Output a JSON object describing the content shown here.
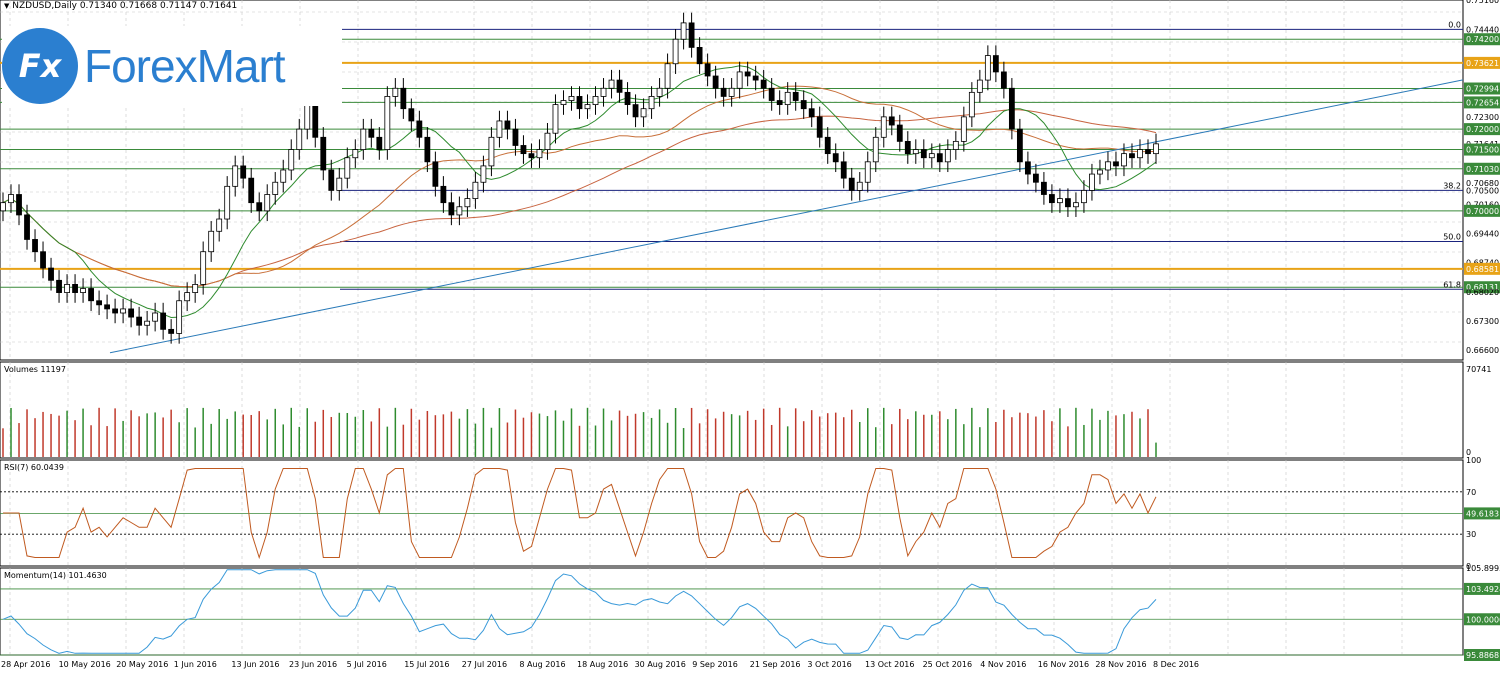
{
  "header": {
    "symbol_info": "NZDUSD,Daily  0.71340 0.71668 0.71147 0.71641"
  },
  "logo": {
    "text": "ForexMart",
    "badge": "Fx"
  },
  "colors": {
    "up": "#ffffff",
    "down": "#000000",
    "grid": "#c8c8c8",
    "level": "#3a8a3a",
    "gold": "#e8a317",
    "trend": "#2a7ab8",
    "ma_fast": "#2e8b2e",
    "ma_mid": "#c8703a",
    "ma_slow": "#c86440",
    "rsi": "#c05a20",
    "momentum": "#3a9ad9",
    "fib": "#1a237e",
    "vol_up": "#2e8b2e",
    "vol_down": "#c0392b"
  },
  "chart_data": [
    {
      "type": "candlestick",
      "title": "NZDUSD,Daily",
      "ylim": [
        0.6635,
        0.7516
      ],
      "price_ticks": [
        "0.75160",
        "0.74440",
        "0.74200",
        "0.73621",
        "0.72994",
        "0.72654",
        "0.72300",
        "0.72000",
        "0.71641",
        "0.71500",
        "0.71030",
        "0.70680",
        "0.70500",
        "0.70160",
        "0.70000",
        "0.69440",
        "0.68740",
        "0.68581",
        "0.68131",
        "0.68020",
        "0.67300",
        "0.66600"
      ],
      "horizontal_levels": [
        {
          "value": 0.7444,
          "kind": "fib",
          "label": "0.0"
        },
        {
          "value": 0.742,
          "kind": "level",
          "label": "0.74200"
        },
        {
          "value": 0.7362,
          "kind": "gold",
          "label": "0.73621"
        },
        {
          "value": 0.72994,
          "kind": "level",
          "label": "0.72994"
        },
        {
          "value": 0.72654,
          "kind": "level",
          "label": "0.72654"
        },
        {
          "value": 0.72,
          "kind": "level",
          "label": "0.72000"
        },
        {
          "value": 0.715,
          "kind": "level",
          "label": "0.71500"
        },
        {
          "value": 0.7103,
          "kind": "level",
          "label": "0.71030"
        },
        {
          "value": 0.705,
          "kind": "fib",
          "label": "38.2"
        },
        {
          "value": 0.7,
          "kind": "level",
          "label": "0.70000"
        },
        {
          "value": 0.6925,
          "kind": "fib",
          "label": "50.0"
        },
        {
          "value": 0.68581,
          "kind": "gold",
          "label": "0.68581"
        },
        {
          "value": 0.68131,
          "kind": "level",
          "label": "0.68131"
        },
        {
          "value": 0.6808,
          "kind": "fib",
          "label": "61.8"
        }
      ],
      "current_price": "0.71641",
      "closes": [
        0.702,
        0.704,
        0.699,
        0.693,
        0.69,
        0.686,
        0.683,
        0.68,
        0.682,
        0.68,
        0.681,
        0.678,
        0.677,
        0.676,
        0.675,
        0.676,
        0.674,
        0.672,
        0.673,
        0.675,
        0.671,
        0.67,
        0.678,
        0.68,
        0.682,
        0.69,
        0.695,
        0.698,
        0.706,
        0.711,
        0.708,
        0.702,
        0.7,
        0.704,
        0.707,
        0.71,
        0.715,
        0.72,
        0.726,
        0.718,
        0.71,
        0.705,
        0.708,
        0.713,
        0.715,
        0.72,
        0.718,
        0.715,
        0.728,
        0.73,
        0.725,
        0.722,
        0.718,
        0.712,
        0.706,
        0.702,
        0.699,
        0.701,
        0.703,
        0.707,
        0.711,
        0.718,
        0.722,
        0.72,
        0.716,
        0.714,
        0.713,
        0.715,
        0.719,
        0.726,
        0.727,
        0.728,
        0.725,
        0.726,
        0.728,
        0.73,
        0.732,
        0.729,
        0.726,
        0.723,
        0.725,
        0.728,
        0.73,
        0.736,
        0.742,
        0.746,
        0.74,
        0.736,
        0.733,
        0.73,
        0.728,
        0.73,
        0.734,
        0.733,
        0.732,
        0.73,
        0.727,
        0.726,
        0.729,
        0.727,
        0.725,
        0.723,
        0.718,
        0.714,
        0.712,
        0.708,
        0.705,
        0.707,
        0.712,
        0.718,
        0.723,
        0.721,
        0.717,
        0.714,
        0.715,
        0.713,
        0.714,
        0.712,
        0.715,
        0.717,
        0.723,
        0.729,
        0.732,
        0.738,
        0.734,
        0.73,
        0.72,
        0.712,
        0.709,
        0.707,
        0.704,
        0.702,
        0.703,
        0.701,
        0.702,
        0.705,
        0.709,
        0.71,
        0.712,
        0.711,
        0.714,
        0.713,
        0.715,
        0.714,
        0.7164
      ],
      "sma_fast_period_note": "green MA",
      "trendline": {
        "from": {
          "x": 0,
          "y": 0.66
        },
        "to": {
          "x": 143,
          "y": 0.7165
        }
      }
    },
    {
      "type": "bar",
      "title": "Volumes 11197",
      "ylim": [
        0,
        70741
      ],
      "ticks": [
        "70741",
        "0"
      ]
    },
    {
      "type": "line",
      "title": "RSI(7) 60.0439",
      "ylim": [
        0,
        100
      ],
      "ticks": [
        "100",
        "70",
        "49.6183",
        "30",
        "0"
      ],
      "levels": [
        70,
        49.6183,
        30
      ]
    },
    {
      "type": "line",
      "title": "Momentum(14) 101.4630",
      "ylim": [
        95.8868,
        105.8993
      ],
      "ticks": [
        "105.8993",
        "103.4924",
        "100.0000",
        "95.8868"
      ],
      "levels": [
        103.4924,
        100.0,
        95.8868
      ]
    }
  ],
  "x_axis": {
    "dates": [
      "28 Apr 2016",
      "10 May 2016",
      "20 May 2016",
      "1 Jun 2016",
      "13 Jun 2016",
      "23 Jun 2016",
      "5 Jul 2016",
      "15 Jul 2016",
      "27 Jul 2016",
      "8 Aug 2016",
      "18 Aug 2016",
      "30 Aug 2016",
      "9 Sep 2016",
      "21 Sep 2016",
      "3 Oct 2016",
      "13 Oct 2016",
      "25 Oct 2016",
      "4 Nov 2016",
      "16 Nov 2016",
      "28 Nov 2016",
      "8 Dec 2016"
    ]
  }
}
